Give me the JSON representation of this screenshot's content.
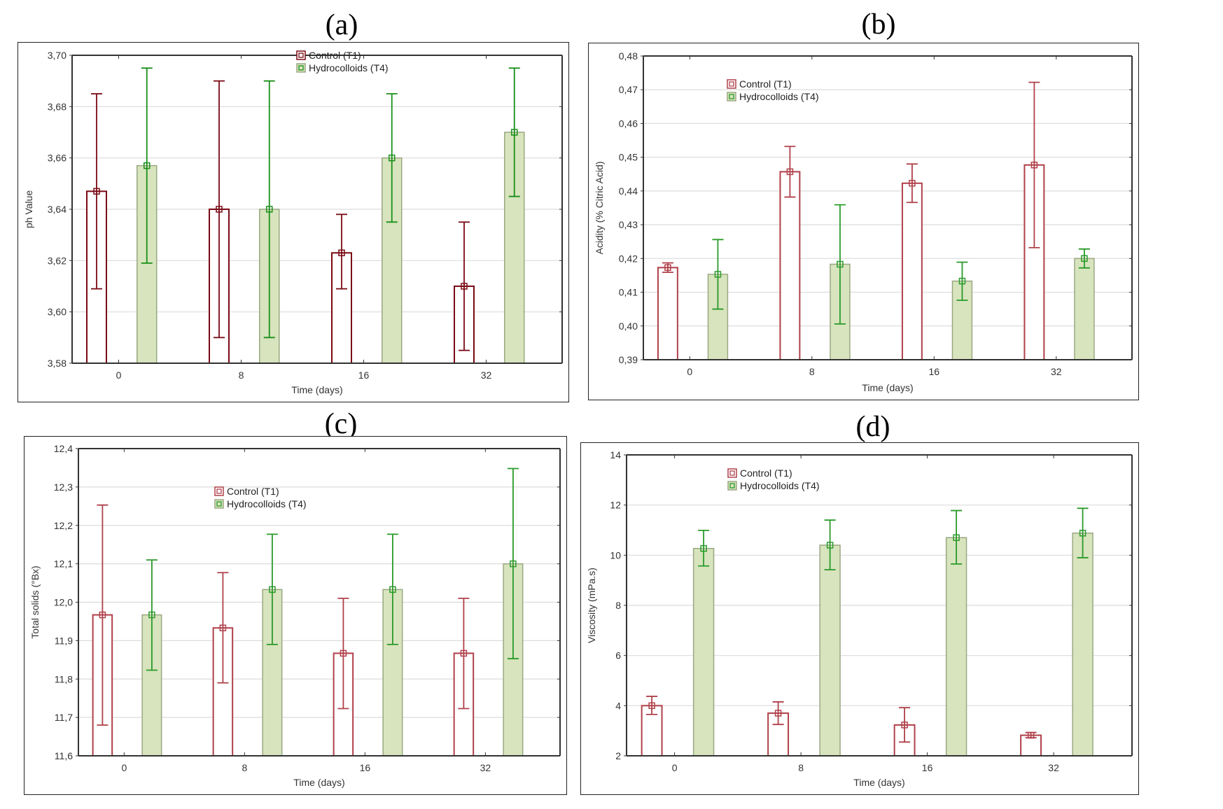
{
  "figure": {
    "panel_labels": [
      "(a)",
      "(b)",
      "(c)",
      "(d)"
    ]
  },
  "chart_data": [
    {
      "type": "bar",
      "panel": "(a)",
      "title": "",
      "xlabel": "Time (days)",
      "ylabel": "ph Value",
      "categories": [
        "0",
        "8",
        "16",
        "32"
      ],
      "ylim": [
        3.58,
        3.7
      ],
      "yticks": [
        "3,58",
        "3,60",
        "3,62",
        "3,64",
        "3,66",
        "3,68",
        "3,70"
      ],
      "ytick_values": [
        3.58,
        3.6,
        3.62,
        3.64,
        3.66,
        3.68,
        3.7
      ],
      "grid": true,
      "legend_position": "top-center",
      "series": [
        {
          "name": "Control (T1)",
          "values": [
            3.647,
            3.64,
            3.623,
            3.61
          ],
          "err_low": [
            3.609,
            3.59,
            3.609,
            3.585
          ],
          "err_high": [
            3.685,
            3.69,
            3.638,
            3.635
          ],
          "color": "#7a0a14"
        },
        {
          "name": "Hydrocolloids (T4)",
          "values": [
            3.657,
            3.64,
            3.66,
            3.67
          ],
          "err_low": [
            3.619,
            3.59,
            3.635,
            3.645
          ],
          "err_high": [
            3.695,
            3.69,
            3.685,
            3.695
          ],
          "color": "#1a8f1a",
          "fill": "#d7e4bd"
        }
      ]
    },
    {
      "type": "bar",
      "panel": "(b)",
      "title": "",
      "xlabel": "Time (days)",
      "ylabel": "Acidity  (% Citric Acid)",
      "categories": [
        "0",
        "8",
        "16",
        "32"
      ],
      "ylim": [
        0.39,
        0.48
      ],
      "yticks": [
        "0,39",
        "0,40",
        "0,41",
        "0,42",
        "0,43",
        "0,44",
        "0,45",
        "0,46",
        "0,47",
        "0,48"
      ],
      "ytick_values": [
        0.39,
        0.4,
        0.41,
        0.42,
        0.43,
        0.44,
        0.45,
        0.46,
        0.47,
        0.48
      ],
      "grid": true,
      "legend_position": "top-center",
      "series": [
        {
          "name": "Control (T1)",
          "values": [
            0.4173,
            0.4457,
            0.4423,
            0.4477
          ],
          "err_low": [
            0.4159,
            0.4382,
            0.4366,
            0.4232
          ],
          "err_high": [
            0.4187,
            0.4532,
            0.448,
            0.4722
          ],
          "color": "#b0404a"
        },
        {
          "name": "Hydrocolloids (T4)",
          "values": [
            0.4153,
            0.4183,
            0.4133,
            0.42
          ],
          "err_low": [
            0.405,
            0.4006,
            0.4076,
            0.4172
          ],
          "err_high": [
            0.4256,
            0.4359,
            0.4189,
            0.4228
          ],
          "color": "#2a9a2a",
          "fill": "#d7e4bd"
        }
      ]
    },
    {
      "type": "bar",
      "panel": "(c)",
      "title": "",
      "xlabel": "Time (days)",
      "ylabel": "Total solids (°Bx)",
      "categories": [
        "0",
        "8",
        "16",
        "32"
      ],
      "ylim": [
        11.6,
        12.4
      ],
      "yticks": [
        "11,6",
        "11,7",
        "11,8",
        "11,9",
        "12,0",
        "12,1",
        "12,2",
        "12,3",
        "12,4"
      ],
      "ytick_values": [
        11.6,
        11.7,
        11.8,
        11.9,
        12.0,
        12.1,
        12.2,
        12.3,
        12.4
      ],
      "grid": true,
      "legend_position": "top-center",
      "series": [
        {
          "name": "Control (T1)",
          "values": [
            11.967,
            11.933,
            11.867,
            11.867
          ],
          "err_low": [
            11.68,
            11.79,
            11.723,
            11.723
          ],
          "err_high": [
            12.253,
            12.077,
            12.01,
            12.01
          ],
          "color": "#b0404a"
        },
        {
          "name": "Hydrocolloids (T4)",
          "values": [
            11.967,
            12.033,
            12.033,
            12.1
          ],
          "err_low": [
            11.823,
            11.89,
            11.89,
            11.853
          ],
          "err_high": [
            12.11,
            12.177,
            12.177,
            12.348
          ],
          "color": "#2a9a2a",
          "fill": "#d7e4bd"
        }
      ]
    },
    {
      "type": "bar",
      "panel": "(d)",
      "title": "",
      "xlabel": "Time (days)",
      "ylabel": "Viscosity (mPa.s)",
      "categories": [
        "0",
        "8",
        "16",
        "32"
      ],
      "ylim": [
        2,
        14
      ],
      "yticks": [
        "2",
        "4",
        "6",
        "8",
        "10",
        "12",
        "14"
      ],
      "ytick_values": [
        2,
        4,
        6,
        8,
        10,
        12,
        14
      ],
      "grid": true,
      "legend_position": "top-center",
      "series": [
        {
          "name": "Control (T1)",
          "values": [
            4.0,
            3.7,
            3.23,
            2.82
          ],
          "err_low": [
            3.65,
            3.25,
            2.55,
            2.72
          ],
          "err_high": [
            4.37,
            4.15,
            3.92,
            2.93
          ],
          "color": "#b0404a"
        },
        {
          "name": "Hydrocolloids (T4)",
          "values": [
            10.27,
            10.4,
            10.7,
            10.88
          ],
          "err_low": [
            9.57,
            9.42,
            9.65,
            9.9
          ],
          "err_high": [
            10.99,
            11.4,
            11.78,
            11.87
          ],
          "color": "#2a9a2a",
          "fill": "#d7e4bd"
        }
      ]
    }
  ]
}
